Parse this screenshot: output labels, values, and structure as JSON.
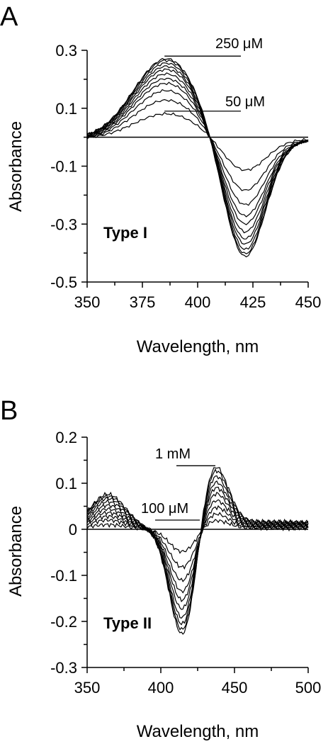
{
  "chart_data": [
    {
      "panel": "A",
      "type": "line",
      "xlabel": "Wavelength, nm",
      "ylabel": "Absorbance",
      "xlim": [
        350,
        450
      ],
      "ylim": [
        -0.5,
        0.3
      ],
      "xticks": [
        350,
        375,
        400,
        425,
        450
      ],
      "yticks": [
        0.3,
        0.1,
        -0.1,
        -0.3,
        -0.5
      ],
      "xtick_labels": [
        "350",
        "375",
        "400",
        "425",
        "450"
      ],
      "ytick_labels": [
        "0.3",
        "0.1",
        "-0.1",
        "-0.3",
        "-0.5"
      ],
      "annotation_label": "Type I",
      "annotations": [
        {
          "text": "250 μM",
          "x": 385,
          "y": 0.28
        },
        {
          "text": "50 μM",
          "x": 385,
          "y": 0.09
        }
      ],
      "model": {
        "kind": "type1",
        "peak_x": 386,
        "trough_x": 421,
        "crossover_x": 405.5
      },
      "series": [
        {
          "peak": 0.09,
          "trough": -0.11
        },
        {
          "peak": 0.14,
          "trough": -0.18
        },
        {
          "peak": 0.175,
          "trough": -0.23
        },
        {
          "peak": 0.2,
          "trough": -0.27
        },
        {
          "peak": 0.215,
          "trough": -0.3
        },
        {
          "peak": 0.23,
          "trough": -0.33
        },
        {
          "peak": 0.245,
          "trough": -0.355
        },
        {
          "peak": 0.255,
          "trough": -0.375
        },
        {
          "peak": 0.265,
          "trough": -0.395
        },
        {
          "peak": 0.275,
          "trough": -0.41
        },
        {
          "peak": 0.28,
          "trough": -0.42
        }
      ]
    },
    {
      "panel": "B",
      "type": "line",
      "xlabel": "Wavelength, nm",
      "ylabel": "Absorbance",
      "xlim": [
        350,
        500
      ],
      "ylim": [
        -0.3,
        0.2
      ],
      "xticks": [
        350,
        400,
        450,
        500
      ],
      "yticks": [
        0.2,
        0.1,
        0,
        -0.1,
        -0.2,
        -0.3
      ],
      "xtick_labels": [
        "350",
        "400",
        "450",
        "500"
      ],
      "ytick_labels": [
        "0.2",
        "0.1",
        "0",
        "-0.1",
        "-0.2",
        "-0.3"
      ],
      "annotation_label": "Type II",
      "annotations": [
        {
          "text": "1 mM",
          "x": 435,
          "y": 0.138
        },
        {
          "text": "100 μM",
          "x": 432,
          "y": 0.02
        }
      ],
      "model": {
        "kind": "type2",
        "short_peak_x": 364,
        "trough_x": 415,
        "peak_x": 436
      },
      "series": [
        {
          "shortpeak": 0.01,
          "trough": -0.05,
          "peak": 0.02
        },
        {
          "shortpeak": 0.02,
          "trough": -0.085,
          "peak": 0.035
        },
        {
          "shortpeak": 0.028,
          "trough": -0.115,
          "peak": 0.05
        },
        {
          "shortpeak": 0.036,
          "trough": -0.14,
          "peak": 0.065
        },
        {
          "shortpeak": 0.044,
          "trough": -0.16,
          "peak": 0.08
        },
        {
          "shortpeak": 0.052,
          "trough": -0.18,
          "peak": 0.093
        },
        {
          "shortpeak": 0.06,
          "trough": -0.2,
          "peak": 0.105
        },
        {
          "shortpeak": 0.067,
          "trough": -0.215,
          "peak": 0.118
        },
        {
          "shortpeak": 0.072,
          "trough": -0.228,
          "peak": 0.13
        },
        {
          "shortpeak": 0.076,
          "trough": -0.238,
          "peak": 0.138
        }
      ]
    }
  ]
}
